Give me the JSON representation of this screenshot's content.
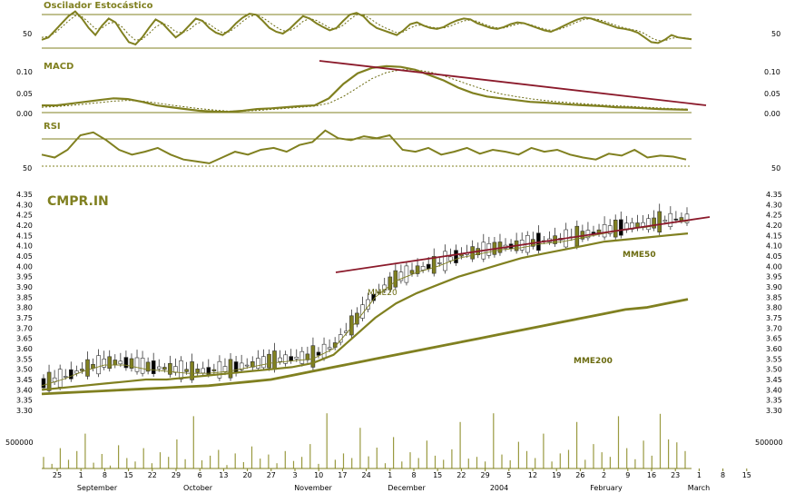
{
  "colors": {
    "olive": "#808020",
    "olive_dark": "#6b6b10",
    "trend": "#8b1a2b",
    "volume": "#9a9a40",
    "ref_line": "#808020"
  },
  "chart_data": [
    {
      "type": "line",
      "panel": "stochastic",
      "title": "Oscilador Estocástico",
      "ticks": [
        "50"
      ],
      "ylim": [
        0,
        100
      ],
      "series": [
        {
          "values": [
            35,
            40,
            55,
            70,
            85,
            95,
            80,
            60,
            45,
            65,
            80,
            72,
            50,
            30,
            25,
            40,
            60,
            78,
            70,
            55,
            40,
            50,
            65,
            80,
            75,
            60,
            50,
            45,
            55,
            70,
            82,
            90,
            88,
            75,
            60,
            52,
            48,
            58,
            72,
            85,
            80,
            70,
            62,
            55,
            60,
            75,
            88,
            92,
            85,
            70,
            60,
            55,
            50,
            45,
            55,
            68,
            72,
            65,
            60,
            58,
            62,
            70,
            76,
            80,
            78,
            70,
            65,
            60,
            58,
            62,
            68,
            72,
            70,
            65,
            60,
            55,
            52,
            58,
            65,
            72,
            78,
            82,
            80,
            75,
            70,
            65,
            60,
            58,
            55,
            50,
            40,
            30,
            28,
            35,
            45,
            40,
            38,
            36
          ]
        },
        {
          "values": [
            40,
            42,
            50,
            62,
            75,
            86,
            84,
            72,
            58,
            60,
            70,
            72,
            62,
            46,
            34,
            36,
            48,
            62,
            70,
            64,
            52,
            50,
            56,
            68,
            74,
            68,
            58,
            50,
            52,
            62,
            74,
            84,
            88,
            82,
            72,
            62,
            54,
            54,
            62,
            74,
            80,
            76,
            68,
            60,
            58,
            66,
            78,
            88,
            88,
            80,
            70,
            62,
            56,
            50,
            52,
            60,
            66,
            66,
            62,
            60,
            60,
            64,
            70,
            75,
            77,
            74,
            68,
            63,
            60,
            60,
            64,
            68,
            70,
            67,
            62,
            58,
            55,
            56,
            61,
            67,
            73,
            78,
            80,
            78,
            74,
            69,
            64,
            60,
            57,
            54,
            48,
            39,
            33,
            33,
            38,
            40,
            39,
            37
          ]
        }
      ]
    },
    {
      "type": "line",
      "panel": "macd",
      "title": "MACD",
      "ticks": [
        "0.10",
        "0.05",
        "0.00"
      ],
      "ylim": [
        0,
        0.15
      ],
      "series": [
        {
          "values": [
            0.02,
            0.02,
            0.025,
            0.03,
            0.035,
            0.04,
            0.038,
            0.03,
            0.02,
            0.015,
            0.01,
            0.005,
            0.003,
            0.002,
            0.005,
            0.01,
            0.012,
            0.015,
            0.018,
            0.02,
            0.04,
            0.08,
            0.11,
            0.125,
            0.13,
            0.128,
            0.12,
            0.105,
            0.09,
            0.07,
            0.055,
            0.045,
            0.04,
            0.035,
            0.03,
            0.028,
            0.025,
            0.022,
            0.02,
            0.018,
            0.015,
            0.014,
            0.012,
            0.01,
            0.009,
            0.008
          ]
        },
        {
          "values": [
            0.015,
            0.017,
            0.02,
            0.024,
            0.028,
            0.032,
            0.034,
            0.032,
            0.027,
            0.021,
            0.016,
            0.011,
            0.007,
            0.004,
            0.004,
            0.006,
            0.009,
            0.012,
            0.015,
            0.018,
            0.026,
            0.045,
            0.07,
            0.095,
            0.112,
            0.12,
            0.12,
            0.114,
            0.103,
            0.089,
            0.075,
            0.062,
            0.052,
            0.045,
            0.039,
            0.034,
            0.03,
            0.027,
            0.024,
            0.021,
            0.019,
            0.017,
            0.015,
            0.013,
            0.011,
            0.01
          ]
        }
      ]
    },
    {
      "type": "line",
      "panel": "rsi",
      "title": "RSI",
      "ticks": [
        "50"
      ],
      "ylim": [
        30,
        90
      ],
      "series": [
        {
          "values": [
            55,
            52,
            60,
            75,
            78,
            70,
            60,
            55,
            58,
            62,
            55,
            50,
            48,
            46,
            52,
            58,
            55,
            60,
            62,
            58,
            65,
            68,
            80,
            72,
            70,
            74,
            72,
            75,
            60,
            58,
            62,
            55,
            58,
            62,
            56,
            60,
            58,
            55,
            62,
            58,
            60,
            55,
            52,
            50,
            56,
            54,
            60,
            52,
            54,
            53,
            50
          ]
        }
      ]
    },
    {
      "type": "line",
      "panel": "price",
      "title": "CMPR.IN",
      "ticks": [
        "4.35",
        "4.30",
        "4.25",
        "4.20",
        "4.15",
        "4.10",
        "4.05",
        "4.00",
        "3.95",
        "3.90",
        "3.85",
        "3.80",
        "3.75",
        "3.70",
        "3.65",
        "3.60",
        "3.55",
        "3.50",
        "3.45",
        "3.40",
        "3.35",
        "3.30"
      ],
      "ylim": [
        3.3,
        4.35
      ],
      "series": [
        {
          "name": "MME20",
          "values": [
            3.42,
            3.45,
            3.49,
            3.52,
            3.52,
            3.5,
            3.49,
            3.48,
            3.48,
            3.49,
            3.51,
            3.53,
            3.54,
            3.55,
            3.6,
            3.72,
            3.85,
            3.93,
            3.97,
            4.0,
            4.04,
            4.06,
            4.08,
            4.09,
            4.11,
            4.12,
            4.14,
            4.16,
            4.18,
            4.19,
            4.21,
            4.22
          ]
        },
        {
          "name": "MME50",
          "values": [
            3.4,
            3.41,
            3.42,
            3.43,
            3.44,
            3.45,
            3.45,
            3.46,
            3.47,
            3.48,
            3.49,
            3.5,
            3.51,
            3.53,
            3.57,
            3.66,
            3.75,
            3.82,
            3.87,
            3.91,
            3.95,
            3.98,
            4.01,
            4.04,
            4.06,
            4.08,
            4.1,
            4.12,
            4.13,
            4.14,
            4.15,
            4.16
          ]
        },
        {
          "name": "MME200",
          "values": [
            3.38,
            3.385,
            3.39,
            3.395,
            3.4,
            3.405,
            3.41,
            3.415,
            3.42,
            3.43,
            3.44,
            3.45,
            3.47,
            3.49,
            3.51,
            3.53,
            3.55,
            3.57,
            3.59,
            3.61,
            3.63,
            3.65,
            3.67,
            3.69,
            3.71,
            3.73,
            3.75,
            3.77,
            3.79,
            3.8,
            3.82,
            3.84
          ]
        }
      ],
      "annotations": [
        "MME20",
        "MME50",
        "MME200"
      ]
    },
    {
      "type": "bar",
      "panel": "volume",
      "ticks": [
        "500000"
      ],
      "values": [
        200000,
        80000,
        350000,
        150000,
        300000,
        600000,
        100000,
        250000,
        50000,
        400000,
        180000,
        120000,
        350000,
        90000,
        280000,
        200000,
        500000,
        160000,
        900000,
        140000,
        220000,
        320000,
        60000,
        260000,
        110000,
        380000,
        170000,
        240000,
        90000,
        300000,
        130000,
        200000,
        420000,
        80000,
        950000,
        150000,
        260000,
        180000,
        700000,
        210000,
        360000,
        90000,
        540000,
        120000,
        280000,
        180000,
        480000,
        220000,
        150000,
        330000,
        800000,
        170000,
        200000,
        120000,
        950000,
        240000,
        140000,
        460000,
        300000,
        180000,
        600000,
        120000,
        260000,
        320000,
        800000,
        150000,
        420000,
        280000,
        200000,
        900000,
        350000,
        160000,
        480000,
        220000,
        940000,
        500000,
        450000,
        300000
      ]
    }
  ],
  "x_axis": {
    "ticks": [
      "25",
      "1",
      "8",
      "15",
      "22",
      "29",
      "6",
      "13",
      "20",
      "27",
      "3",
      "10",
      "17",
      "24",
      "1",
      "8",
      "15",
      "22",
      "29",
      "5",
      "12",
      "19",
      "26",
      "2",
      "9",
      "16",
      "23",
      "1",
      "8",
      "15"
    ],
    "months": [
      "September",
      "October",
      "November",
      "December",
      "2004",
      "February",
      "March"
    ]
  }
}
